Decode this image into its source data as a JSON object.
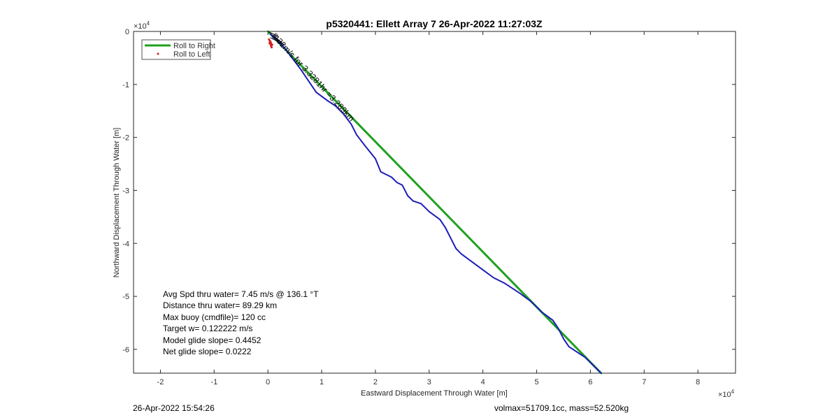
{
  "chart_data": {
    "type": "line",
    "title": "p5320441: Ellett Array 7 26-Apr-2022 11:27:03Z",
    "xlabel": "Eastward Displacement Through Water [m]",
    "ylabel": "Northward Displacement Through Water [m]",
    "x_exponent": "×10",
    "x_exponent_power": "4",
    "y_exponent": "×10",
    "y_exponent_power": "4",
    "xlim": [
      -2.5,
      8.7
    ],
    "ylim": [
      -6.45,
      0.0
    ],
    "xticks": [
      -2,
      -1,
      0,
      1,
      2,
      3,
      4,
      5,
      6,
      7,
      8
    ],
    "xtick_labels": [
      "-2",
      "-1",
      "0",
      "1",
      "2",
      "3",
      "4",
      "5",
      "6",
      "7",
      "8"
    ],
    "yticks": [
      0,
      -1,
      -2,
      -3,
      -4,
      -5,
      -6
    ],
    "ytick_labels": [
      "0",
      "-1",
      "-2",
      "-3",
      "-4",
      "-5",
      "-6"
    ],
    "grid": false,
    "legend_position": "top-left",
    "legend": [
      {
        "label": "Roll to Right",
        "color": "#1fa11f",
        "style": "line"
      },
      {
        "label": "Roll to Left",
        "color": "#d62020",
        "style": "dot"
      }
    ],
    "series": [
      {
        "name": "Roll to Right",
        "color": "#1fa11f",
        "x": [
          0.0,
          6.2
        ],
        "y": [
          0.0,
          -6.45
        ]
      },
      {
        "color": "#1c1cb8",
        "x": [
          0.05,
          0.3,
          0.6,
          0.9,
          1.1,
          1.25,
          1.4,
          1.55,
          1.65,
          1.8,
          2.0,
          2.1,
          2.3,
          2.4,
          2.5,
          2.6,
          2.7,
          2.85,
          3.0,
          3.2,
          3.3,
          3.4,
          3.5,
          3.6,
          3.8,
          4.0,
          4.2,
          4.4,
          4.55,
          4.7,
          4.9,
          5.1,
          5.3,
          5.4,
          5.5,
          5.6,
          5.75,
          5.9,
          6.05,
          6.2
        ],
        "y": [
          -0.05,
          -0.3,
          -0.7,
          -1.15,
          -1.3,
          -1.4,
          -1.55,
          -1.75,
          -1.95,
          -2.15,
          -2.4,
          -2.65,
          -2.75,
          -2.85,
          -2.9,
          -3.1,
          -3.2,
          -3.25,
          -3.4,
          -3.55,
          -3.7,
          -3.9,
          -4.1,
          -4.2,
          -4.35,
          -4.5,
          -4.65,
          -4.75,
          -4.85,
          -4.95,
          -5.1,
          -5.3,
          -5.45,
          -5.6,
          -5.8,
          -5.95,
          -6.05,
          -6.15,
          -6.3,
          -6.45
        ]
      },
      {
        "color": "#000000",
        "x": [
          0.0,
          0.1,
          0.2,
          0.15,
          0.25,
          0.1,
          0.3,
          0.05
        ],
        "y": [
          0.0,
          -0.05,
          -0.1,
          -0.15,
          -0.2,
          -0.08,
          -0.25,
          -0.12
        ]
      }
    ],
    "roll_left_points": {
      "x": [
        0.02,
        0.05,
        0.08,
        0.06,
        0.03,
        0.04,
        0.07
      ],
      "y": [
        -0.15,
        -0.2,
        -0.25,
        -0.28,
        -0.22,
        -0.18,
        -0.3
      ]
    },
    "diagonal_annotation": "8.32m/s for 3.3281hr =3.289km",
    "stats_lines": [
      "Avg Spd thru water=  7.45 m/s @ 136.1 °T",
      "Distance thru water= 89.29 km",
      "Max buoy (cmdfile)= 120 cc",
      "Target w= 0.122222 m/s",
      "Model glide slope= 0.4452",
      "Net glide slope= 0.0222"
    ]
  },
  "footer": {
    "left": "26-Apr-2022 15:54:26",
    "right": "volmax=51709.1cc, mass=52.520kg"
  }
}
